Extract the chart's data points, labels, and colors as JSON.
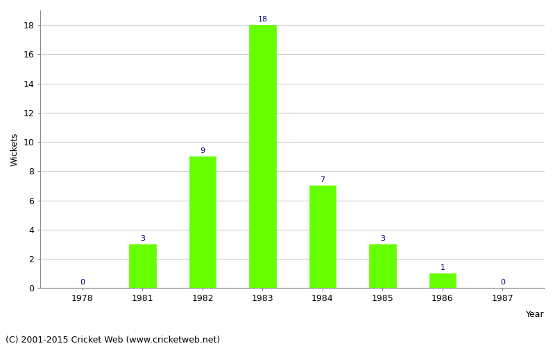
{
  "years": [
    1978,
    1981,
    1982,
    1983,
    1984,
    1985,
    1986,
    1987
  ],
  "wickets": [
    0,
    3,
    9,
    18,
    7,
    3,
    1,
    0
  ],
  "bar_color": "#66ff00",
  "bar_edge_color": "#66ff00",
  "label_color": "#000080",
  "xlabel": "Year",
  "ylabel": "Wickets",
  "ylim": [
    0,
    19
  ],
  "yticks": [
    0,
    2,
    4,
    6,
    8,
    10,
    12,
    14,
    16,
    18
  ],
  "background_color": "#ffffff",
  "grid_color": "#cccccc",
  "footer": "(C) 2001-2015 Cricket Web (www.cricketweb.net)",
  "label_fontsize": 8,
  "axis_label_fontsize": 9,
  "tick_fontsize": 9,
  "footer_fontsize": 9,
  "bar_width": 0.45
}
